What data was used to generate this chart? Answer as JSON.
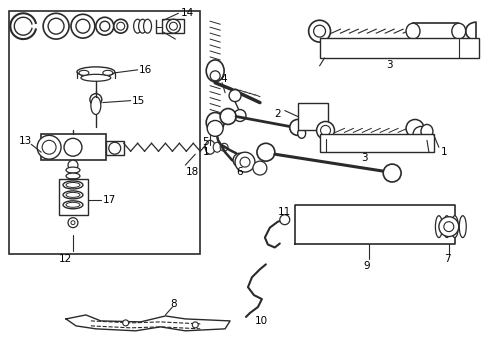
{
  "bg_color": "#ffffff",
  "line_color": "#2a2a2a",
  "fig_width": 4.89,
  "fig_height": 3.6,
  "dpi": 100,
  "xlim": [
    0,
    489
  ],
  "ylim": [
    0,
    360
  ]
}
